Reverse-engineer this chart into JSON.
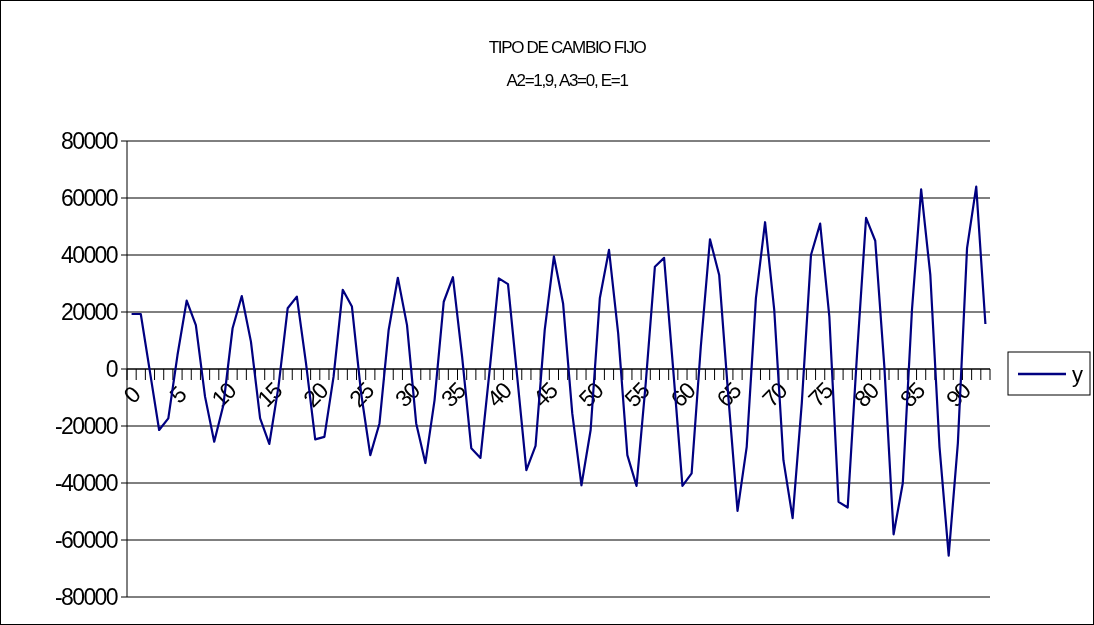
{
  "chart_data": {
    "type": "line",
    "title": "TIPO DE CAMBIO FIJO",
    "subtitle": "A2=1,9, A3=0, E=1",
    "categories": [
      "0",
      null,
      null,
      null,
      null,
      "5",
      null,
      null,
      null,
      null,
      "10",
      null,
      null,
      null,
      null,
      "15",
      null,
      null,
      null,
      null,
      "20",
      null,
      null,
      null,
      null,
      "25",
      null,
      null,
      null,
      null,
      "30",
      null,
      null,
      null,
      null,
      "35",
      null,
      null,
      null,
      null,
      "40",
      null,
      null,
      null,
      null,
      "45",
      null,
      null,
      null,
      null,
      "50",
      null,
      null,
      null,
      null,
      "55",
      null,
      null,
      null,
      null,
      "60",
      null,
      null,
      null,
      null,
      "65",
      null,
      null,
      null,
      null,
      "70",
      null,
      null,
      null,
      null,
      "75",
      null,
      null,
      null,
      null,
      "80",
      null,
      null,
      null,
      null,
      "85",
      null,
      null,
      null,
      null,
      "90",
      null,
      null,
      null
    ],
    "series": [
      {
        "name": "y",
        "color": "#000080",
        "values": [
          19300,
          19300,
          -1000,
          -21400,
          -17300,
          4900,
          24000,
          15400,
          -9700,
          -25500,
          -12600,
          14300,
          25600,
          9600,
          -17300,
          -26300,
          -6200,
          21300,
          25400,
          2000,
          -24700,
          -23800,
          -2700,
          27800,
          21900,
          -8500,
          -30200,
          -19100,
          13700,
          32000,
          15400,
          -19100,
          -33000,
          -10900,
          23600,
          32200,
          4300,
          -27800,
          -31200,
          -400,
          31800,
          29800,
          -2700,
          -35500,
          -27000,
          13700,
          39500,
          23000,
          -15600,
          -40800,
          -21400,
          24800,
          41800,
          12500,
          -30200,
          -41000,
          -5000,
          35900,
          39000,
          -400,
          -41000,
          -36600,
          7800,
          45500,
          33000,
          -9700,
          -49800,
          -27300,
          24800,
          51500,
          20700,
          -32000,
          -52300,
          -12000,
          40000,
          51000,
          18400,
          -46600,
          -48600,
          4300,
          53000,
          45000,
          500,
          -58000,
          -40100,
          20700,
          63000,
          33000,
          -27300,
          -65500,
          -26000,
          42400,
          64000,
          15800
        ]
      }
    ],
    "ylim": [
      -80000,
      80000
    ],
    "yticks": [
      -80000,
      -60000,
      -40000,
      -20000,
      0,
      20000,
      40000,
      60000,
      80000
    ],
    "grid": "y",
    "legend": "right",
    "marker": "none",
    "line_style": "solid"
  }
}
